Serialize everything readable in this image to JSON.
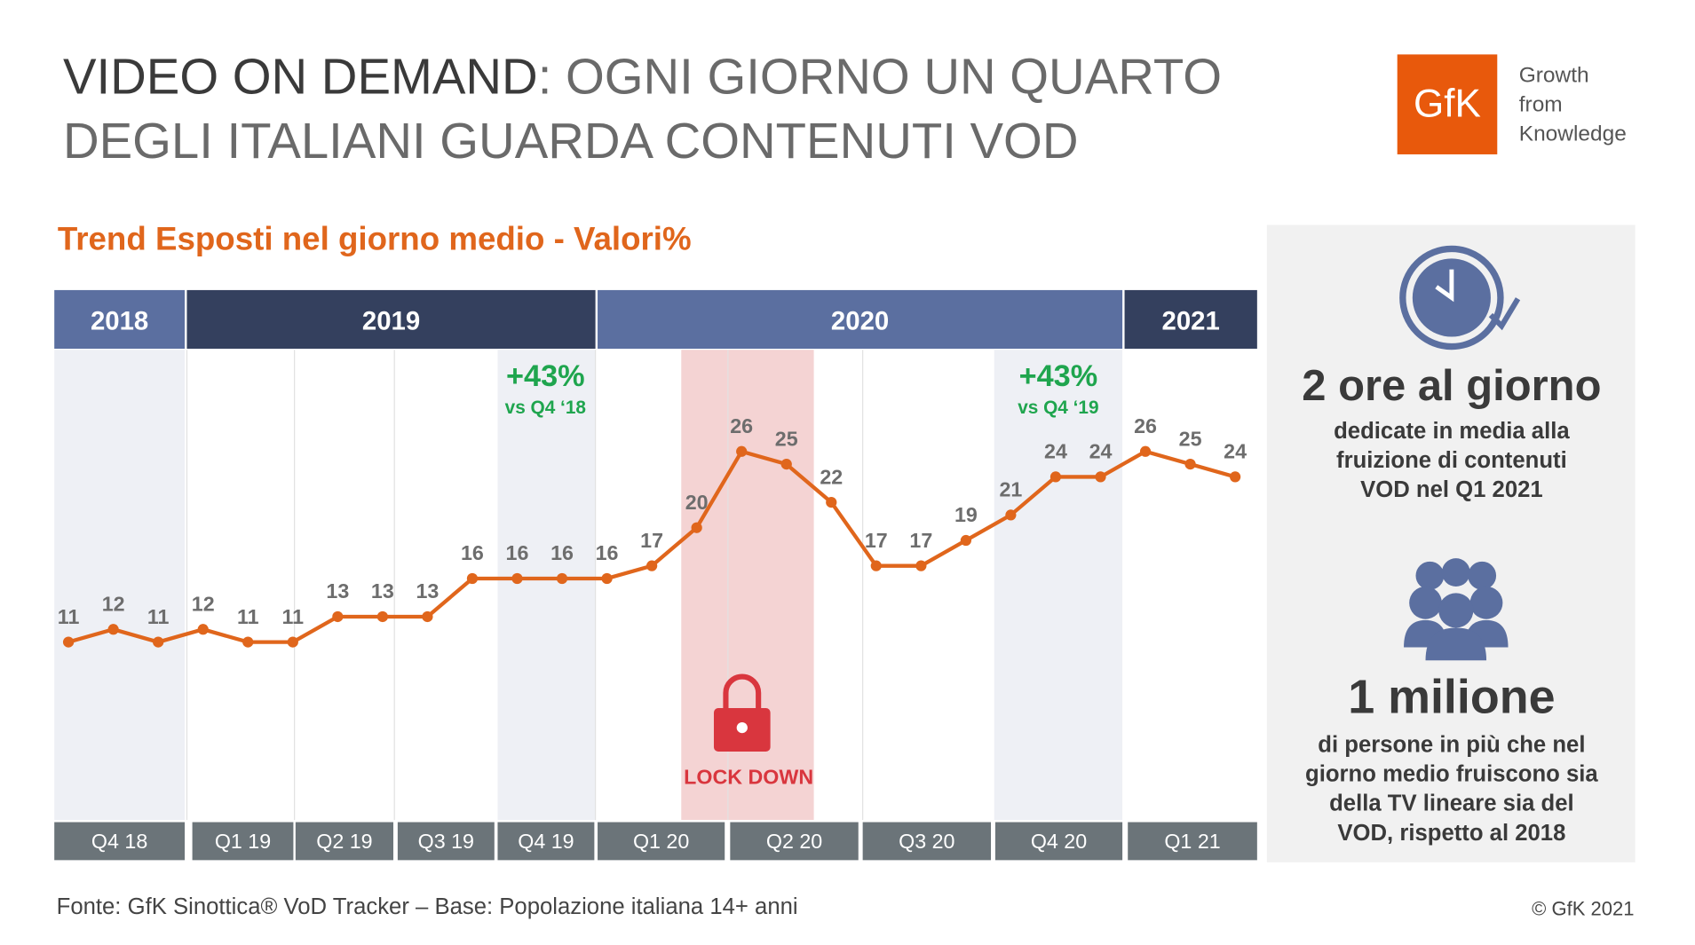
{
  "header": {
    "title_bold": "VIDEO ON DEMAND",
    "title_rest": ": OGNI GIORNO UN QUARTO",
    "title_line2": "DEGLI ITALIANI GUARDA CONTENUTI VOD",
    "logo": "GfK",
    "tagline": [
      "Growth",
      "from",
      "Knowledge"
    ]
  },
  "chart_data": {
    "type": "line",
    "title": "Trend Esposti nel giorno medio - Valori%",
    "years": [
      "2018",
      "2019",
      "2020",
      "2021"
    ],
    "quarters": [
      "Q4 18",
      "Q1 19",
      "Q2 19",
      "Q3 19",
      "Q4 19",
      "Q1 20",
      "Q2 20",
      "Q3 20",
      "Q4 20",
      "Q1 21"
    ],
    "series": [
      {
        "name": "Esposti",
        "color": "#e0661c",
        "values": [
          11,
          12,
          11,
          12,
          11,
          11,
          13,
          13,
          13,
          16,
          16,
          16,
          16,
          17,
          20,
          26,
          25,
          22,
          17,
          17,
          19,
          21,
          24,
          24,
          26,
          25,
          24
        ]
      }
    ],
    "ylim": [
      -3,
      34
    ],
    "annotations": [
      {
        "text": "+43%",
        "sub": "vs Q4 ‘18"
      },
      {
        "text": "+43%",
        "sub": "vs Q4 ‘19"
      },
      {
        "text": "LOCK DOWN"
      }
    ]
  },
  "side_panel": {
    "stat1": "2 ore al giorno",
    "stat1_text": [
      "dedicate in media alla",
      "fruizione di contenuti",
      "VOD nel Q1 2021"
    ],
    "stat2": "1 milione",
    "stat2_text": [
      "di persone in più che nel",
      "giorno medio fruiscono sia",
      "della TV lineare sia del",
      "VOD, rispetto al 2018"
    ]
  },
  "footer": {
    "source": "Fonte: GfK Sinottica® VoD Tracker – Base: Popolazione italiana 14+ anni",
    "copyright": "© GfK 2021"
  }
}
